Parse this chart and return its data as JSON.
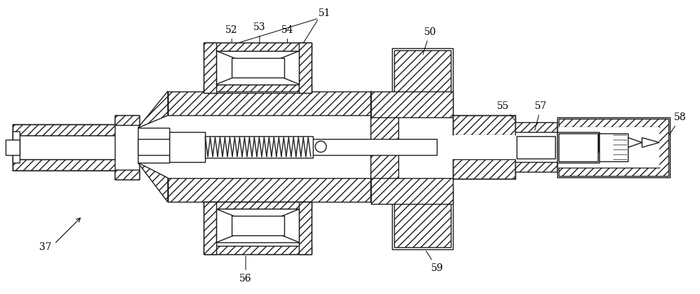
{
  "background_color": "#ffffff",
  "line_color": "#1a1a1a",
  "figsize": [
    10.0,
    4.21
  ],
  "dpi": 100,
  "label_fontsize": 10,
  "lw": 1.0
}
